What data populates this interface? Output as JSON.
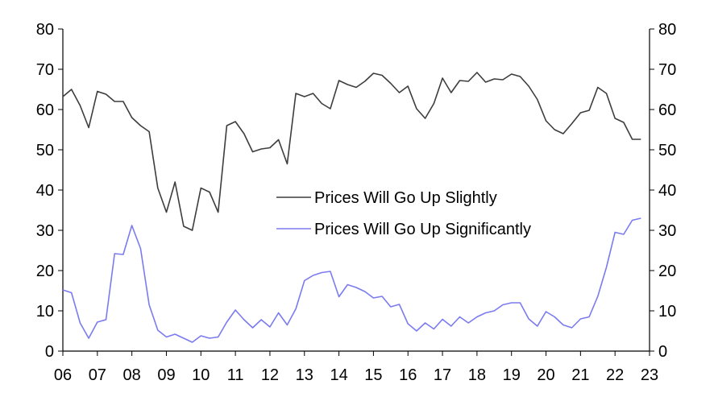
{
  "chart_data": {
    "type": "line",
    "title": "",
    "xlabel": "",
    "ylabel": "",
    "ylim": [
      0,
      80
    ],
    "y_ticks": [
      0,
      10,
      20,
      30,
      40,
      50,
      60,
      70,
      80
    ],
    "xlim": [
      2006,
      2023
    ],
    "x_ticks": [
      2006,
      2007,
      2008,
      2009,
      2010,
      2011,
      2012,
      2013,
      2014,
      2015,
      2016,
      2017,
      2018,
      2019,
      2020,
      2021,
      2022,
      2023
    ],
    "x_tick_labels": [
      "06",
      "07",
      "08",
      "09",
      "10",
      "11",
      "12",
      "13",
      "14",
      "15",
      "16",
      "17",
      "18",
      "19",
      "20",
      "21",
      "22",
      "23"
    ],
    "grid": false,
    "legend_position": "center-right",
    "x": [
      2006.0,
      2006.25,
      2006.5,
      2006.75,
      2007.0,
      2007.25,
      2007.5,
      2007.75,
      2008.0,
      2008.25,
      2008.5,
      2008.75,
      2009.0,
      2009.25,
      2009.5,
      2009.75,
      2010.0,
      2010.25,
      2010.5,
      2010.75,
      2011.0,
      2011.25,
      2011.5,
      2011.75,
      2012.0,
      2012.25,
      2012.5,
      2012.75,
      2013.0,
      2013.25,
      2013.5,
      2013.75,
      2014.0,
      2014.25,
      2014.5,
      2014.75,
      2015.0,
      2015.25,
      2015.5,
      2015.75,
      2016.0,
      2016.25,
      2016.5,
      2016.75,
      2017.0,
      2017.25,
      2017.5,
      2017.75,
      2018.0,
      2018.25,
      2018.5,
      2018.75,
      2019.0,
      2019.25,
      2019.5,
      2019.75,
      2020.0,
      2020.25,
      2020.5,
      2020.75,
      2021.0,
      2021.25,
      2021.5,
      2021.75,
      2022.0,
      2022.25,
      2022.5,
      2022.75
    ],
    "series": [
      {
        "name": "Prices Will Go Up Slightly",
        "color": "#3d3d3d",
        "values": [
          63.2,
          65,
          61,
          55.5,
          64.5,
          63.8,
          62,
          62,
          58,
          56,
          54.5,
          40.5,
          34.5,
          42,
          31,
          30,
          40.5,
          39.5,
          34.5,
          56,
          57,
          54,
          49.5,
          50.2,
          50.5,
          52.5,
          46.5,
          64,
          63.2,
          64,
          61.5,
          60.2,
          67.2,
          66.2,
          65.5,
          67,
          69,
          68.5,
          66.5,
          64.2,
          65.8,
          60.2,
          57.8,
          61.5,
          67.8,
          64.2,
          67.2,
          67,
          69.2,
          66.8,
          67.6,
          67.4,
          68.8,
          68.2,
          65.8,
          62.5,
          57.2,
          55,
          54,
          56.5,
          59.2,
          59.8,
          65.5,
          64,
          57.8,
          56.8,
          52.6,
          52.6
        ]
      },
      {
        "name": "Prices Will Go Up Significantly",
        "color": "#7b7bf0",
        "values": [
          15.2,
          14.5,
          7,
          3.2,
          7.2,
          7.8,
          24.2,
          24,
          31.2,
          25.5,
          11.5,
          5.2,
          3.5,
          4.2,
          3.2,
          2.2,
          3.8,
          3.2,
          3.5,
          7.2,
          10.2,
          7.8,
          5.8,
          7.8,
          6,
          9.5,
          6.5,
          10.5,
          17.5,
          18.8,
          19.5,
          19.8,
          13.5,
          16.5,
          15.8,
          14.8,
          13.2,
          13.6,
          11,
          11.6,
          6.8,
          5,
          7,
          5.5,
          7.9,
          6.2,
          8.5,
          7,
          8.5,
          9.5,
          10,
          11.5,
          12,
          12,
          8,
          6.2,
          9.8,
          8.5,
          6.5,
          5.8,
          8,
          8.5,
          13.6,
          20.8,
          29.5,
          29,
          32.5,
          33
        ]
      }
    ]
  }
}
